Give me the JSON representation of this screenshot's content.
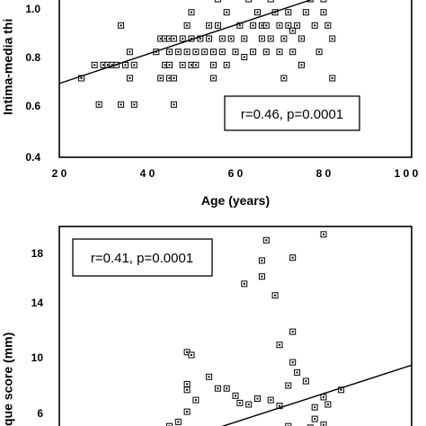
{
  "chart_data": [
    {
      "type": "scatter",
      "title": "",
      "xlabel": "Age (years)",
      "ylabel": "Intima-media thi",
      "xlim": [
        20,
        100
      ],
      "ylim": [
        0.4,
        1.0
      ],
      "xticks": [
        "2 0",
        "4 0",
        "6 0",
        "8 0",
        "1 0 0"
      ],
      "yticks": [
        "0.4",
        "0.6",
        "0.8",
        "1.0"
      ],
      "annotation": "r=0.46,  p=0.0001",
      "trendline": {
        "x": [
          20,
          83
        ],
        "y": [
          0.68,
          1.03
        ]
      },
      "marker": "open-square",
      "points": [
        [
          25,
          0.7
        ],
        [
          28,
          0.75
        ],
        [
          29,
          0.6
        ],
        [
          30,
          0.75
        ],
        [
          31,
          0.75
        ],
        [
          32,
          0.75
        ],
        [
          33,
          0.75
        ],
        [
          34,
          0.9
        ],
        [
          34,
          0.6
        ],
        [
          35,
          0.75
        ],
        [
          36,
          0.7
        ],
        [
          36,
          0.8
        ],
        [
          37,
          0.75
        ],
        [
          37,
          0.6
        ],
        [
          42,
          0.8
        ],
        [
          43,
          0.85
        ],
        [
          43,
          0.7
        ],
        [
          44,
          0.75
        ],
        [
          44,
          0.85
        ],
        [
          45,
          0.7
        ],
        [
          45,
          0.8
        ],
        [
          45,
          0.85
        ],
        [
          45,
          0.75
        ],
        [
          46,
          0.6
        ],
        [
          46,
          0.7
        ],
        [
          46,
          0.85
        ],
        [
          47,
          0.8
        ],
        [
          48,
          0.85
        ],
        [
          48,
          0.75
        ],
        [
          49,
          0.9
        ],
        [
          49,
          0.8
        ],
        [
          50,
          0.75
        ],
        [
          50,
          0.85
        ],
        [
          50,
          0.95
        ],
        [
          51,
          0.8
        ],
        [
          51,
          0.75
        ],
        [
          52,
          0.85
        ],
        [
          53,
          0.8
        ],
        [
          54,
          0.9
        ],
        [
          54,
          0.85
        ],
        [
          55,
          0.8
        ],
        [
          55,
          0.75
        ],
        [
          55,
          0.7
        ],
        [
          56,
          1.0
        ],
        [
          56,
          0.9
        ],
        [
          57,
          0.85
        ],
        [
          57,
          0.8
        ],
        [
          58,
          0.75
        ],
        [
          58,
          0.95
        ],
        [
          59,
          0.85
        ],
        [
          60,
          0.8
        ],
        [
          61,
          0.9
        ],
        [
          62,
          0.78
        ],
        [
          62,
          0.85
        ],
        [
          63,
          1.0
        ],
        [
          64,
          0.9
        ],
        [
          64,
          0.8
        ],
        [
          65,
          0.95
        ],
        [
          66,
          0.9
        ],
        [
          66,
          0.85
        ],
        [
          67,
          0.9
        ],
        [
          67,
          0.8
        ],
        [
          68,
          1.0
        ],
        [
          68,
          0.85
        ],
        [
          69,
          0.95
        ],
        [
          70,
          0.8
        ],
        [
          70,
          0.9
        ],
        [
          71,
          0.85
        ],
        [
          71,
          0.7
        ],
        [
          72,
          0.95
        ],
        [
          72,
          0.9
        ],
        [
          73,
          0.88
        ],
        [
          73,
          0.8
        ],
        [
          74,
          0.9
        ],
        [
          75,
          0.85
        ],
        [
          75,
          0.75
        ],
        [
          76,
          0.95
        ],
        [
          77,
          1.0
        ],
        [
          78,
          0.9
        ],
        [
          79,
          0.8
        ],
        [
          80,
          1.0
        ],
        [
          80,
          0.95
        ],
        [
          81,
          0.9
        ],
        [
          82,
          0.7
        ],
        [
          82,
          0.85
        ]
      ]
    },
    {
      "type": "scatter",
      "title": "",
      "xlabel": "",
      "ylabel": "que score (mm)",
      "ylim": [
        5.4,
        19.5
      ],
      "yticks": [
        "6",
        "10",
        "14",
        "18"
      ],
      "annotation": "r=0.41,  p=0.0001",
      "trendline": {
        "x": [
          52,
          100
        ],
        "y": [
          5.3,
          10.0
        ]
      },
      "marker": "open-square",
      "points": [
        [
          80,
          19.0
        ],
        [
          67,
          18.6
        ],
        [
          66,
          17.2
        ],
        [
          66,
          16.1
        ],
        [
          73,
          17.4
        ],
        [
          62,
          15.6
        ],
        [
          69,
          14.8
        ],
        [
          73,
          12.3
        ],
        [
          49,
          10.9
        ],
        [
          50,
          10.7
        ],
        [
          54,
          9.2
        ],
        [
          49,
          8.7
        ],
        [
          70,
          11.4
        ],
        [
          73,
          10.2
        ],
        [
          74,
          9.5
        ],
        [
          72,
          8.6
        ],
        [
          76,
          8.9
        ],
        [
          80,
          7.8
        ],
        [
          81,
          7.3
        ],
        [
          84,
          8.3
        ],
        [
          49,
          8.3
        ],
        [
          51,
          7.6
        ],
        [
          56,
          8.4
        ],
        [
          58,
          8.4
        ],
        [
          60,
          7.9
        ],
        [
          61,
          7.4
        ],
        [
          63,
          7.3
        ],
        [
          65,
          7.7
        ],
        [
          68,
          7.6
        ],
        [
          70,
          7.2
        ],
        [
          78,
          7.1
        ],
        [
          78,
          6.3
        ],
        [
          49,
          6.8
        ],
        [
          47,
          6.1
        ],
        [
          45,
          5.8
        ],
        [
          72,
          5.8
        ],
        [
          75,
          5.6
        ],
        [
          80,
          5.9
        ],
        [
          77,
          5.7
        ]
      ]
    }
  ]
}
